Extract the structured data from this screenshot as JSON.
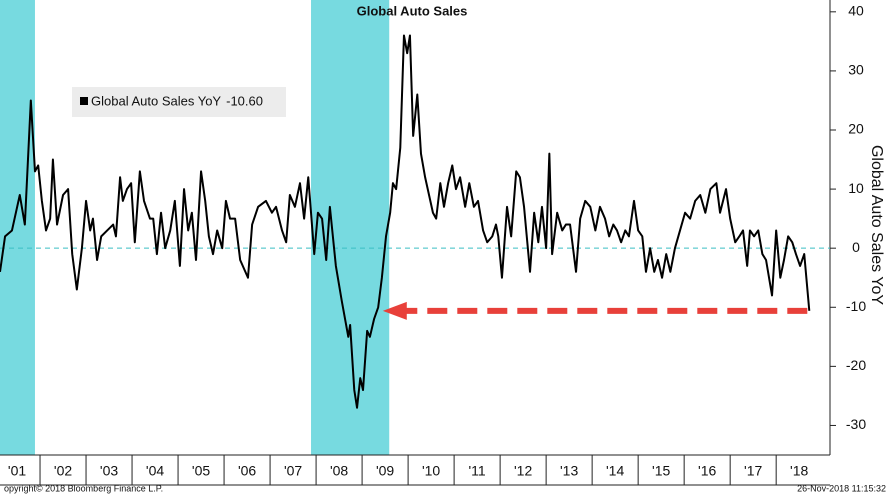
{
  "chart_data": {
    "type": "line",
    "title": "Global Auto Sales",
    "y_axis_label": "Global Auto Sales YoY",
    "footer_left": "opyright© 2018 Bloomberg Finance L.P.",
    "footer_right": "26-Nov-2018 11:15:32",
    "xlim": [
      2001.13,
      2019.17
    ],
    "ylim": [
      -35,
      42
    ],
    "yticks": [
      -30,
      -20,
      -10,
      0,
      10,
      20,
      30,
      40
    ],
    "xticks": [
      {
        "value": 2001.5,
        "label": "'01"
      },
      {
        "value": 2002.5,
        "label": "'02"
      },
      {
        "value": 2003.5,
        "label": "'03"
      },
      {
        "value": 2004.5,
        "label": "'04"
      },
      {
        "value": 2005.5,
        "label": "'05"
      },
      {
        "value": 2006.5,
        "label": "'06"
      },
      {
        "value": 2007.5,
        "label": "'07"
      },
      {
        "value": 2008.5,
        "label": "'08"
      },
      {
        "value": 2009.5,
        "label": "'09"
      },
      {
        "value": 2010.5,
        "label": "'10"
      },
      {
        "value": 2011.5,
        "label": "'11"
      },
      {
        "value": 2012.5,
        "label": "'12"
      },
      {
        "value": 2013.5,
        "label": "'13"
      },
      {
        "value": 2014.5,
        "label": "'14"
      },
      {
        "value": 2015.5,
        "label": "'15"
      },
      {
        "value": 2016.5,
        "label": "'16"
      },
      {
        "value": 2017.5,
        "label": "'17"
      },
      {
        "value": 2018.5,
        "label": "'18"
      }
    ],
    "recessions": [
      [
        2001.13,
        2001.89
      ],
      [
        2007.89,
        2009.59
      ]
    ],
    "recession_color": "#5fd4da",
    "zero_line_color": "#3bbfc4",
    "arrow": {
      "to": 2009.45,
      "color": "#e8403a"
    },
    "series": [
      {
        "name": "Global Auto Sales YoY",
        "legend_value": "-10.60",
        "color": "#000000",
        "x": [
          2001.13,
          2001.24,
          2001.39,
          2001.56,
          2001.67,
          2001.8,
          2001.89,
          2001.96,
          2002.04,
          2002.13,
          2002.22,
          2002.28,
          2002.37,
          2002.5,
          2002.61,
          2002.7,
          2002.8,
          2002.91,
          2003.0,
          2003.09,
          2003.15,
          2003.24,
          2003.33,
          2003.46,
          2003.59,
          2003.65,
          2003.74,
          2003.8,
          2003.89,
          2003.98,
          2004.06,
          2004.17,
          2004.26,
          2004.39,
          2004.46,
          2004.54,
          2004.63,
          2004.72,
          2004.83,
          2004.93,
          2005.04,
          2005.13,
          2005.22,
          2005.3,
          2005.39,
          2005.5,
          2005.59,
          2005.67,
          2005.76,
          2005.85,
          2005.96,
          2006.04,
          2006.13,
          2006.24,
          2006.35,
          2006.52,
          2006.61,
          2006.74,
          2006.91,
          2007.04,
          2007.13,
          2007.26,
          2007.35,
          2007.43,
          2007.54,
          2007.65,
          2007.74,
          2007.83,
          2007.96,
          2008.04,
          2008.13,
          2008.22,
          2008.3,
          2008.43,
          2008.56,
          2008.7,
          2008.74,
          2008.83,
          2008.89,
          2008.96,
          2009.02,
          2009.11,
          2009.17,
          2009.26,
          2009.35,
          2009.43,
          2009.52,
          2009.61,
          2009.67,
          2009.74,
          2009.83,
          2009.91,
          2009.98,
          2010.04,
          2010.11,
          2010.2,
          2010.28,
          2010.37,
          2010.54,
          2010.61,
          2010.7,
          2010.78,
          2010.87,
          2010.96,
          2011.04,
          2011.13,
          2011.24,
          2011.33,
          2011.43,
          2011.52,
          2011.63,
          2011.72,
          2011.83,
          2011.91,
          2011.96,
          2012.04,
          2012.15,
          2012.24,
          2012.35,
          2012.43,
          2012.52,
          2012.65,
          2012.74,
          2012.83,
          2012.91,
          2013.0,
          2013.07,
          2013.13,
          2013.24,
          2013.35,
          2013.43,
          2013.52,
          2013.65,
          2013.74,
          2013.85,
          2013.96,
          2014.07,
          2014.17,
          2014.28,
          2014.37,
          2014.46,
          2014.54,
          2014.63,
          2014.72,
          2014.8,
          2014.91,
          2015.0,
          2015.09,
          2015.17,
          2015.26,
          2015.35,
          2015.43,
          2015.52,
          2015.61,
          2015.7,
          2015.8,
          2015.91,
          2016.02,
          2016.13,
          2016.24,
          2016.35,
          2016.46,
          2016.57,
          2016.7,
          2016.78,
          2016.91,
          2017.0,
          2017.11,
          2017.2,
          2017.28,
          2017.37,
          2017.43,
          2017.52,
          2017.61,
          2017.7,
          2017.78,
          2017.91,
          2018.0,
          2018.09,
          2018.17,
          2018.26,
          2018.35,
          2018.43,
          2018.52,
          2018.61,
          2018.72
        ],
        "values": [
          -4,
          2,
          3,
          9,
          4,
          25,
          13,
          14,
          8,
          3,
          5,
          15,
          4,
          9,
          10,
          -1,
          -7,
          0,
          8,
          3,
          5,
          -2,
          2,
          3,
          4,
          2,
          12,
          8,
          10,
          11,
          1,
          13,
          8,
          5,
          5,
          -1,
          6,
          0,
          3,
          8,
          -3,
          10,
          3,
          6,
          -2,
          13,
          8,
          2,
          -1,
          3,
          0,
          8,
          5,
          5,
          -2,
          -5,
          4,
          7,
          8,
          6,
          7,
          3,
          1,
          9,
          7,
          11,
          5,
          12,
          -1,
          6,
          5,
          -2,
          7,
          -3,
          -9,
          -15,
          -13,
          -24,
          -27,
          -22,
          -24,
          -14,
          -15,
          -12,
          -10,
          -5,
          2,
          6,
          11,
          10,
          17,
          36,
          33,
          36,
          19,
          26,
          16,
          12,
          6,
          5,
          11,
          7,
          11,
          14,
          10,
          12,
          7,
          11,
          7,
          8,
          3,
          1,
          2,
          4,
          2,
          -5,
          7,
          2,
          13,
          12,
          7,
          -4,
          6,
          1,
          7,
          0,
          16,
          -1,
          6,
          3,
          4,
          4,
          -4,
          5,
          8,
          7,
          3,
          7,
          5,
          2,
          4,
          3,
          1,
          3,
          2,
          8,
          3,
          2,
          -4,
          0,
          -4,
          -2,
          -5,
          -1,
          -4,
          0,
          3,
          6,
          5,
          8,
          9,
          6,
          10,
          11,
          6,
          10,
          5,
          1,
          2,
          3,
          -3,
          3,
          2,
          3,
          -1,
          -2,
          -8,
          3,
          -5,
          -2,
          2,
          1,
          -1,
          -3,
          -1,
          -10.6
        ]
      }
    ]
  }
}
